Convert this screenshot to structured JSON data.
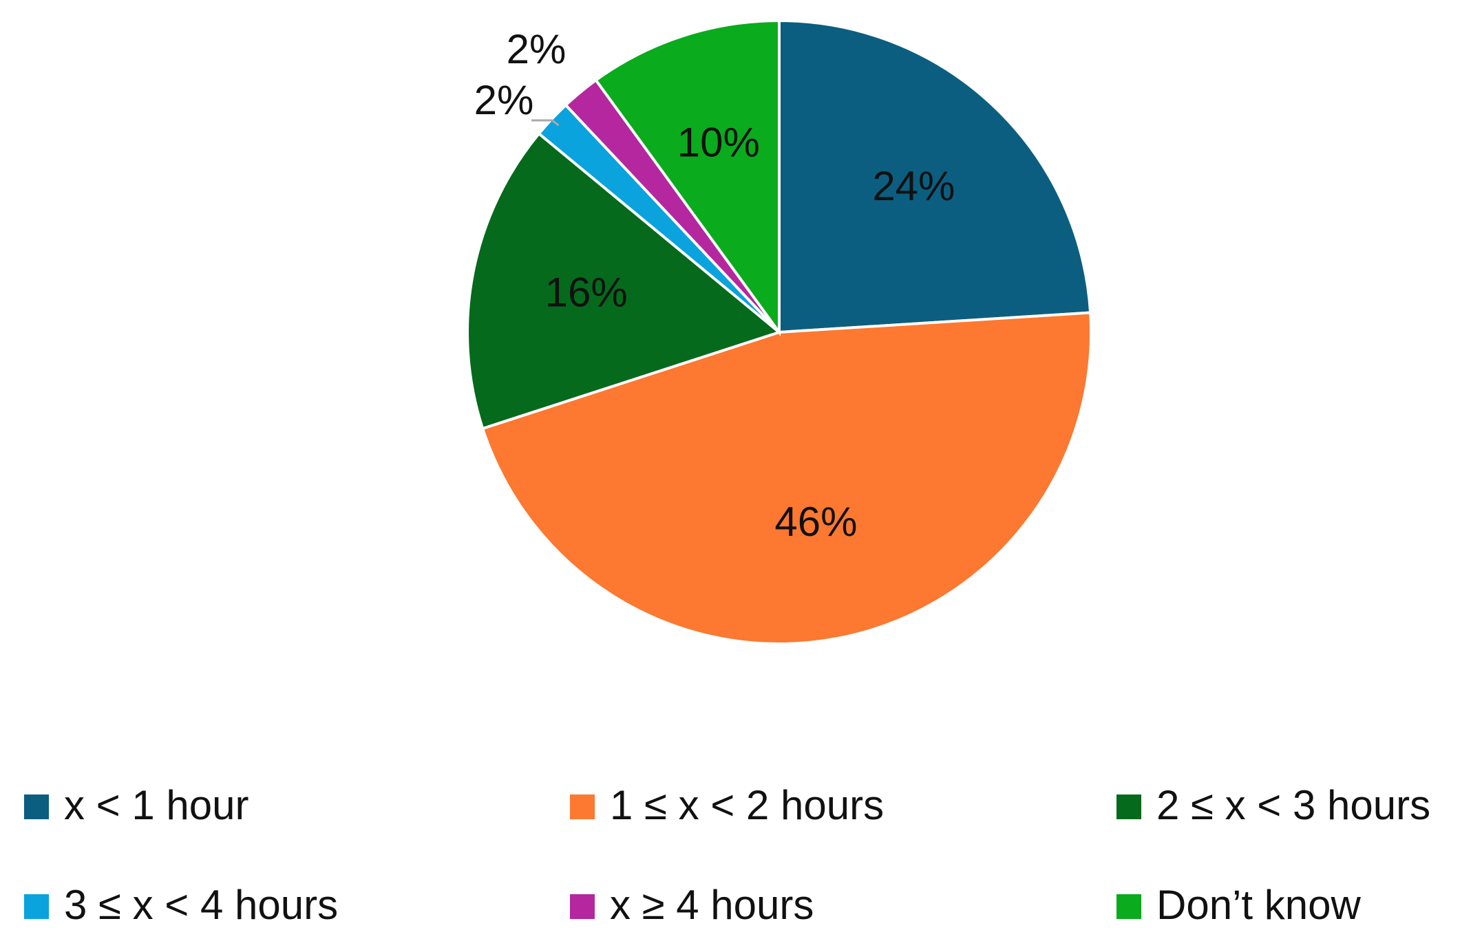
{
  "chart_data": {
    "type": "pie",
    "categories": [
      "x < 1 hour",
      "1 ≤ x < 2 hours",
      "2 ≤ x < 3 hours",
      "3 ≤ x < 4 hours",
      "x ≥ 4 hours",
      "Don’t know"
    ],
    "values": [
      24,
      46,
      16,
      2,
      2,
      10
    ],
    "value_labels": [
      "24%",
      "46%",
      "16%",
      "2%",
      "2%",
      "10%"
    ],
    "colors": [
      "#0b5e80",
      "#fd7830",
      "#056a1c",
      "#0aa3de",
      "#b4279f",
      "#0aab1c"
    ],
    "legend": "bottom"
  }
}
